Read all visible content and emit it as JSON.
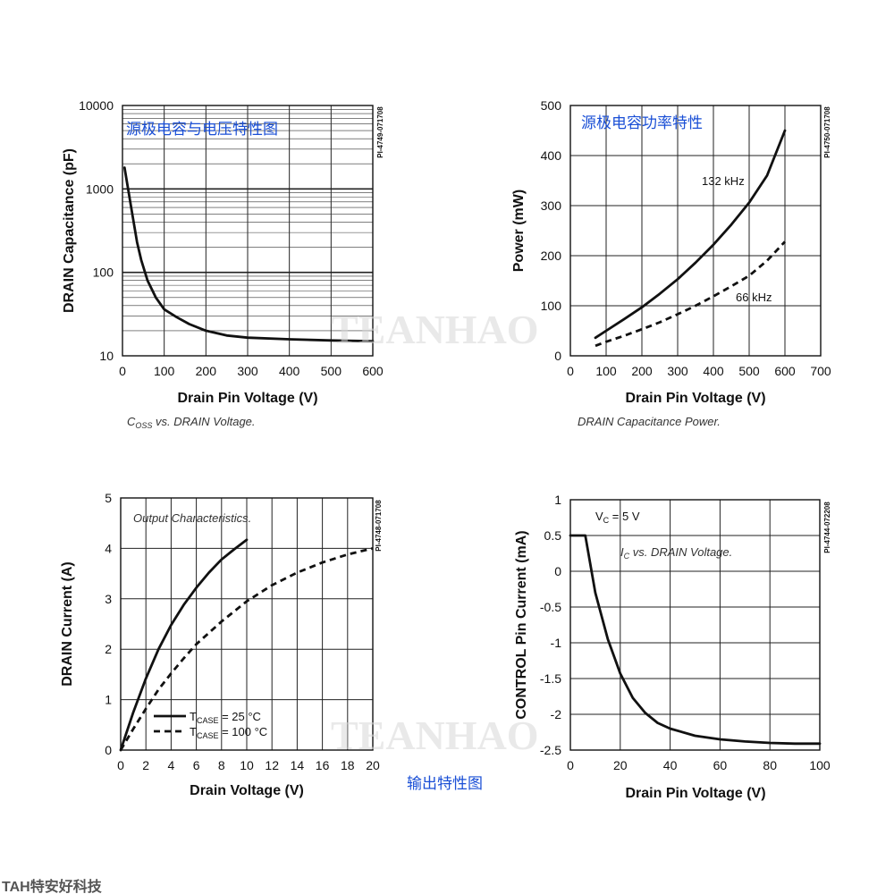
{
  "watermark": "TEANHAO",
  "footer_text": "TAH特安好科技",
  "bottom_caption_cn": "输出特性图",
  "chart_data": [
    {
      "type": "line",
      "panel_title_cn": "源极电容与电压特性图",
      "caption_main": "C",
      "caption_sub": "OSS",
      "caption_rest": " vs. DRAIN Voltage.",
      "code": "PI-4749-071708",
      "xlabel": "Drain Pin Voltage (V)",
      "ylabel": "DRAIN Capacitance (pF)",
      "xlim": [
        0,
        600
      ],
      "ylim": [
        10,
        10000
      ],
      "yscale": "log",
      "xticks": [
        0,
        100,
        200,
        300,
        400,
        500,
        600
      ],
      "xtick_labels": [
        "0",
        "100",
        "200",
        "300",
        "400",
        "500",
        "600"
      ],
      "yticks": [
        10,
        100,
        1000,
        10000
      ],
      "ytick_labels": [
        "10",
        "100",
        "1000",
        "10000"
      ],
      "grid": true,
      "series": [
        {
          "style": "solid",
          "x": [
            5,
            15,
            25,
            35,
            45,
            60,
            80,
            100,
            130,
            160,
            200,
            250,
            300,
            400,
            500,
            600
          ],
          "y": [
            1800,
            900,
            450,
            230,
            140,
            80,
            50,
            36,
            29,
            24,
            20,
            17.5,
            16.5,
            15.8,
            15.3,
            15
          ]
        }
      ]
    },
    {
      "type": "line",
      "panel_title_cn": "源极电容功率特性",
      "caption": "DRAIN Capacitance Power.",
      "code": "PI-4750-071708",
      "xlabel": "Drain Pin Voltage (V)",
      "ylabel": "Power (mW)",
      "xlim": [
        0,
        700
      ],
      "ylim": [
        0,
        500
      ],
      "xticks": [
        0,
        100,
        200,
        300,
        400,
        500,
        600,
        700
      ],
      "xtick_labels": [
        "0",
        "100",
        "200",
        "300",
        "400",
        "500",
        "600",
        "700"
      ],
      "yticks": [
        0,
        100,
        200,
        300,
        400,
        500
      ],
      "ytick_labels": [
        "0",
        "100",
        "200",
        "300",
        "400",
        "500"
      ],
      "grid": true,
      "series": [
        {
          "name": "132 kHz",
          "style": "solid",
          "x": [
            70,
            100,
            150,
            200,
            250,
            300,
            350,
            400,
            450,
            500,
            550,
            600
          ],
          "y": [
            36,
            50,
            73,
            97,
            124,
            153,
            186,
            222,
            262,
            306,
            360,
            450
          ]
        },
        {
          "name": "66 kHz",
          "style": "dashed",
          "x": [
            70,
            100,
            150,
            200,
            250,
            300,
            350,
            400,
            450,
            500,
            550,
            600
          ],
          "y": [
            20,
            28,
            40,
            53,
            67,
            83,
            100,
            119,
            139,
            160,
            190,
            228
          ]
        }
      ]
    },
    {
      "type": "line",
      "panel_title_cn": "",
      "caption": "Output Characteristics.",
      "code": "PI-4748-071708",
      "xlabel": "Drain Voltage (V)",
      "ylabel": "DRAIN Current (A)",
      "xlim": [
        0,
        20
      ],
      "ylim": [
        0,
        5
      ],
      "xticks": [
        0,
        2,
        4,
        6,
        8,
        10,
        12,
        14,
        16,
        18,
        20
      ],
      "xtick_labels": [
        "0",
        "2",
        "4",
        "6",
        "8",
        "10",
        "12",
        "14",
        "16",
        "18",
        "20"
      ],
      "yticks": [
        0,
        1,
        2,
        3,
        4,
        5
      ],
      "ytick_labels": [
        "0",
        "1",
        "2",
        "3",
        "4",
        "5"
      ],
      "grid": true,
      "legend_position": "bottom-left",
      "series": [
        {
          "name_main": "T",
          "name_sub": "CASE",
          "name_rest": " = 25 °C",
          "style": "solid",
          "x": [
            0,
            1,
            2,
            3,
            4,
            5,
            6,
            7,
            8,
            9,
            10
          ],
          "y": [
            0,
            0.75,
            1.42,
            2.0,
            2.48,
            2.88,
            3.22,
            3.52,
            3.78,
            3.98,
            4.17
          ]
        },
        {
          "name_main": "T",
          "name_sub": "CASE",
          "name_rest": " = 100 °C",
          "style": "dashed",
          "x": [
            0,
            1,
            2,
            3,
            4,
            5,
            6,
            8,
            10,
            12,
            14,
            16,
            18,
            20
          ],
          "y": [
            0,
            0.42,
            0.82,
            1.2,
            1.52,
            1.82,
            2.1,
            2.55,
            2.95,
            3.27,
            3.52,
            3.72,
            3.88,
            4.0
          ]
        }
      ]
    },
    {
      "type": "line",
      "panel_title_cn": "",
      "caption_main": "I",
      "caption_sub": "C",
      "caption_rest": " vs. DRAIN Voltage.",
      "annotation_main": "V",
      "annotation_sub": "C",
      "annotation_rest": " = 5 V",
      "code": "PI-4744-072208",
      "xlabel": "Drain Pin Voltage (V)",
      "ylabel": "CONTROL Pin Current (mA)",
      "xlim": [
        0,
        100
      ],
      "ylim": [
        -2.5,
        1
      ],
      "xticks": [
        0,
        20,
        40,
        60,
        80,
        100
      ],
      "xtick_labels": [
        "0",
        "20",
        "40",
        "60",
        "80",
        "100"
      ],
      "yticks": [
        -2.5,
        -2,
        -1.5,
        -1,
        -0.5,
        0,
        0.5,
        1
      ],
      "ytick_labels": [
        "-2.5",
        "-2",
        "-1.5",
        "-1",
        "-0.5",
        "0",
        "0.5",
        "1"
      ],
      "grid": true,
      "series": [
        {
          "style": "solid",
          "x": [
            0,
            6,
            10,
            15,
            20,
            25,
            30,
            35,
            40,
            50,
            60,
            70,
            80,
            90,
            100
          ],
          "y": [
            0.5,
            0.5,
            -0.3,
            -0.95,
            -1.43,
            -1.77,
            -1.98,
            -2.12,
            -2.2,
            -2.3,
            -2.35,
            -2.38,
            -2.4,
            -2.41,
            -2.41
          ]
        }
      ]
    }
  ]
}
